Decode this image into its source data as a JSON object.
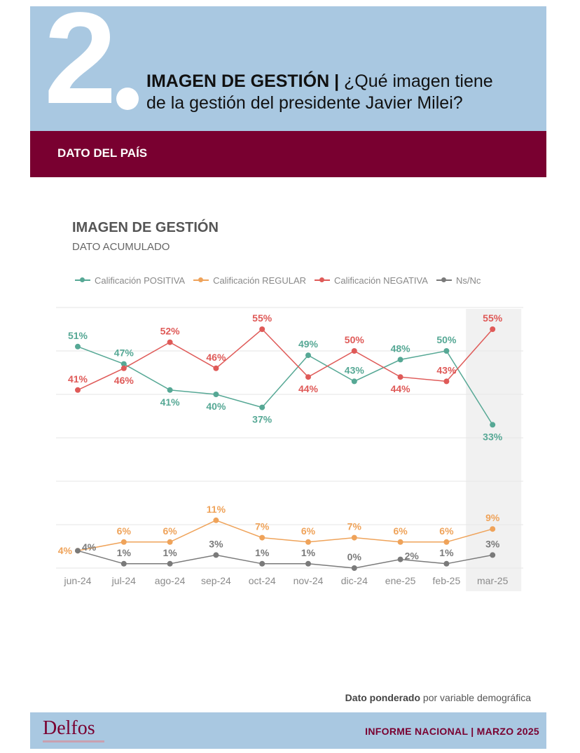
{
  "header": {
    "number": "2",
    "title_bold": "IMAGEN DE GESTIÓN",
    "title_sep": " | ",
    "title_rest_line1": "¿Qué imagen tiene",
    "title_line2": "de la gestión del presidente Javier Milei?",
    "band_label": "DATO DEL PAÍS"
  },
  "footnote": {
    "bold": "Dato ponderado",
    "rest": " por variable demográfica"
  },
  "footer": {
    "logo": "Delfos",
    "right_text": "INFORME NACIONAL | MARZO 2025"
  },
  "colors": {
    "header_bg": "#a9c8e1",
    "band": "#790030",
    "positiva": "#56a895",
    "regular": "#efa35a",
    "negativa": "#df5a58",
    "nsnc": "#7a7a7a"
  },
  "chart_data": {
    "type": "line",
    "title": "IMAGEN DE GESTIÓN",
    "subtitle": "DATO ACUMULADO",
    "legend_position": "top",
    "grid": true,
    "ylim": [
      0,
      60
    ],
    "highlighted_category": "mar-25",
    "categories": [
      "jun-24",
      "jul-24",
      "ago-24",
      "sep-24",
      "oct-24",
      "nov-24",
      "dic-24",
      "ene-25",
      "feb-25",
      "mar-25"
    ],
    "series": [
      {
        "name": "Calificación POSITIVA",
        "color": "#56a895",
        "values": [
          51,
          47,
          41,
          40,
          37,
          49,
          43,
          48,
          50,
          33
        ],
        "labels": [
          "51%",
          "47%",
          "41%",
          "40%",
          "37%",
          "49%",
          "43%",
          "48%",
          "50%",
          "33%"
        ],
        "label_pos": [
          "above",
          "above",
          "below",
          "below",
          "below",
          "above",
          "above",
          "above",
          "above",
          "below"
        ]
      },
      {
        "name": "Calificación REGULAR",
        "color": "#efa35a",
        "values": [
          4,
          6,
          6,
          11,
          7,
          6,
          7,
          6,
          6,
          9
        ],
        "labels": [
          "4%",
          "6%",
          "6%",
          "11%",
          "7%",
          "6%",
          "7%",
          "6%",
          "6%",
          "9%"
        ],
        "label_pos": [
          "left",
          "above",
          "above",
          "above",
          "above",
          "above",
          "above",
          "above",
          "above",
          "above"
        ]
      },
      {
        "name": "Calificación NEGATIVA",
        "color": "#df5a58",
        "values": [
          41,
          46,
          52,
          46,
          55,
          44,
          50,
          44,
          43,
          55
        ],
        "labels": [
          "41%",
          "46%",
          "52%",
          "46%",
          "55%",
          "44%",
          "50%",
          "44%",
          "43%",
          "55%"
        ],
        "label_pos": [
          "above",
          "below",
          "above",
          "above",
          "above",
          "below",
          "above",
          "below",
          "above",
          "above"
        ]
      },
      {
        "name": "Ns/Nc",
        "color": "#7a7a7a",
        "values": [
          4,
          1,
          1,
          3,
          1,
          1,
          0,
          2,
          1,
          3
        ],
        "labels": [
          "4%",
          "1%",
          "1%",
          "3%",
          "1%",
          "1%",
          "0%",
          "2%",
          "1%",
          "3%"
        ],
        "label_pos": [
          "right",
          "above",
          "above",
          "above",
          "above",
          "above",
          "above",
          "right",
          "above",
          "above"
        ]
      }
    ]
  }
}
